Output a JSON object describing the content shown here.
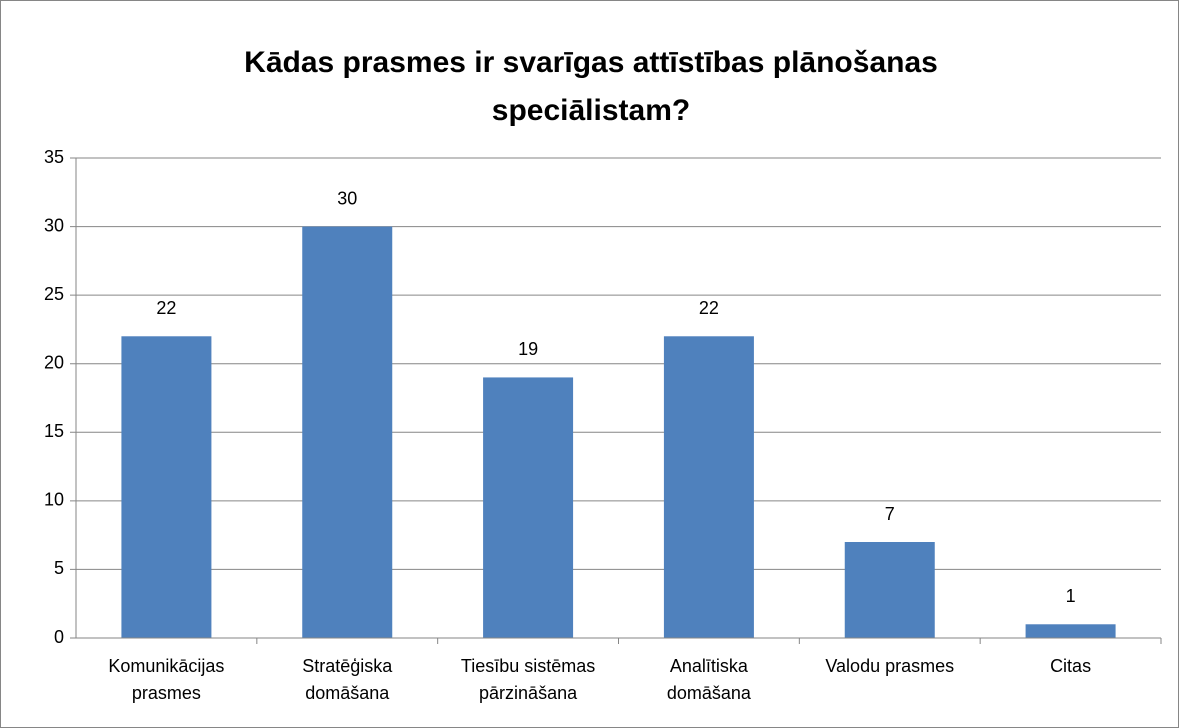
{
  "chart_data": {
    "type": "bar",
    "title": "Kādas prasmes ir svarīgas attīstības plānošanas speciālistam?",
    "categories": [
      "Komunikācijas prasmes",
      "Stratēģiska domāšana",
      "Tiesību sistēmas pārzināšana",
      "Analītiska domāšana",
      "Valodu prasmes",
      "Citas"
    ],
    "values": [
      22,
      30,
      19,
      22,
      7,
      1
    ],
    "color": "#4f81bd",
    "ylim": [
      0,
      35
    ],
    "yticks": [
      0,
      5,
      10,
      15,
      20,
      25,
      30,
      35
    ],
    "grid": true
  }
}
